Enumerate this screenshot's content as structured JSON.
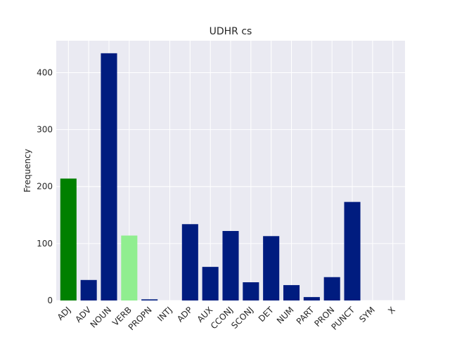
{
  "chart_data": {
    "type": "bar",
    "title": "UDHR cs",
    "xlabel": "",
    "ylabel": "Frequency",
    "categories": [
      "ADJ",
      "ADV",
      "NOUN",
      "VERB",
      "PROPN",
      "INTJ",
      "ADP",
      "AUX",
      "CCONJ",
      "SCONJ",
      "DET",
      "NUM",
      "PART",
      "PRON",
      "PUNCT",
      "SYM",
      "X"
    ],
    "values": [
      214,
      36,
      434,
      114,
      2,
      0,
      134,
      59,
      122,
      32,
      113,
      27,
      6,
      41,
      173,
      0,
      0
    ],
    "bar_colors": [
      "#008000",
      "#001c7f",
      "#001c7f",
      "#90ee90",
      "#001c7f",
      "#001c7f",
      "#001c7f",
      "#001c7f",
      "#001c7f",
      "#001c7f",
      "#001c7f",
      "#001c7f",
      "#001c7f",
      "#001c7f",
      "#001c7f",
      "#001c7f",
      "#001c7f"
    ],
    "ylim": [
      0,
      456
    ],
    "yticks": [
      0,
      100,
      200,
      300,
      400
    ],
    "grid": true,
    "background_color": "#eaeaf2",
    "grid_color": "#ffffff"
  }
}
